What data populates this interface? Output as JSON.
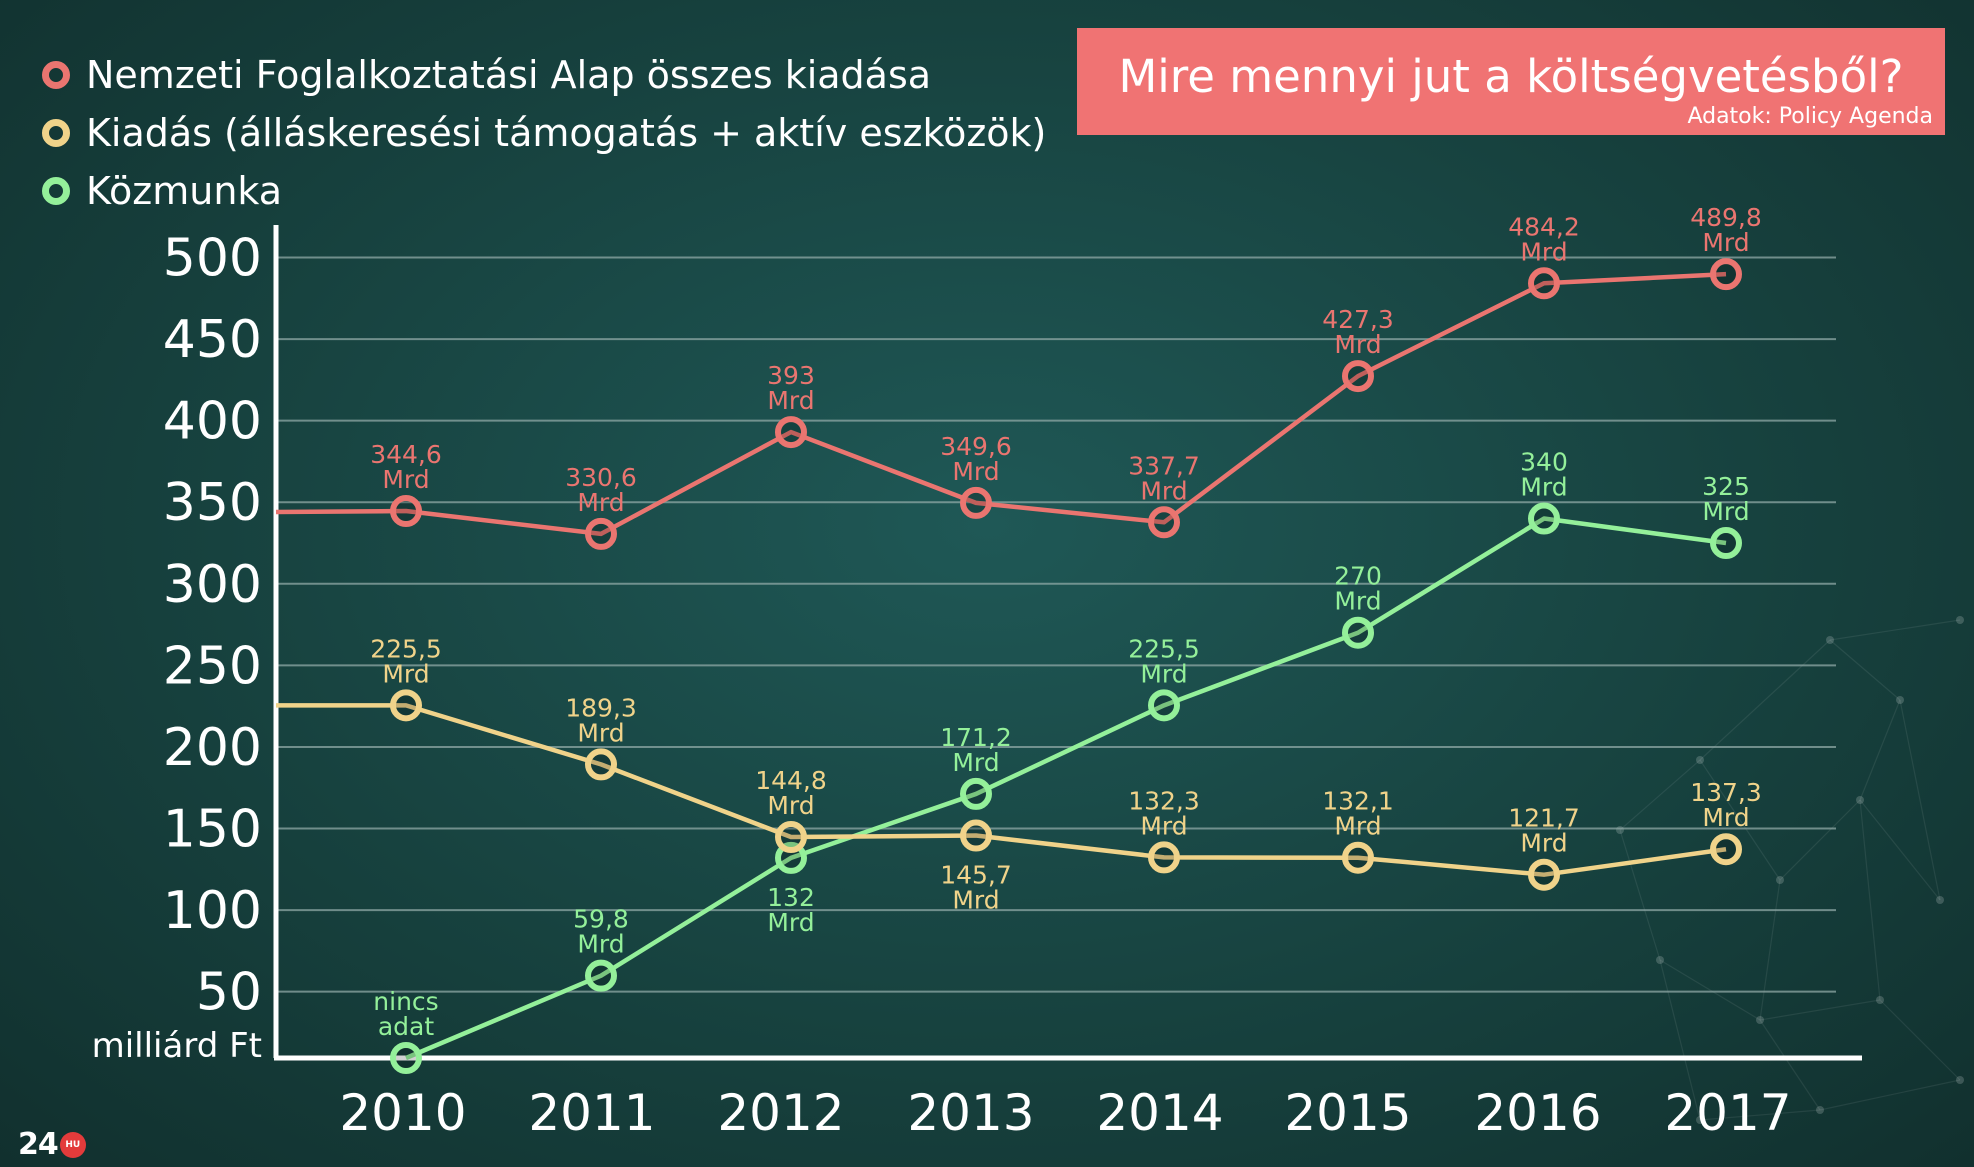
{
  "title": "Mire mennyi jut a költségvetésből?",
  "source": "Adatok: Policy Agenda",
  "logo": {
    "number": "24",
    "badge": "HU"
  },
  "colors": {
    "red": "#ea7570",
    "yellow": "#f0d38a",
    "green": "#94f09a",
    "grid": "#8fa8a6",
    "axis": "#ffffff"
  },
  "legend": [
    {
      "label": "Nemzeti Foglalkoztatási Alap összes kiadása",
      "color": "#ea7570"
    },
    {
      "label": "Kiadás (álláskeresési támogatás + aktív eszközök)",
      "color": "#f0d38a"
    },
    {
      "label": "Közmunka",
      "color": "#94f09a"
    }
  ],
  "chart_data": {
    "type": "line",
    "title": "Mire mennyi jut a költségvetésből?",
    "ylabel": "milliárd Ft",
    "xlabel": "",
    "ylim": [
      30,
      520
    ],
    "yticks": [
      50,
      100,
      150,
      200,
      250,
      300,
      350,
      400,
      450,
      500
    ],
    "x": [
      "2010",
      "2011",
      "2012",
      "2013",
      "2014",
      "2015",
      "2016",
      "2017"
    ],
    "grid": true,
    "series": [
      {
        "name": "Nemzeti Foglalkoztatási Alap összes kiadása",
        "color": "#ea7570",
        "values": [
          344.6,
          330.6,
          393,
          349.6,
          337.7,
          427.3,
          484.2,
          489.8
        ],
        "labels": [
          "344,6",
          "330,6",
          "393",
          "349,6",
          "337,7",
          "427,3",
          "484,2",
          "489,8"
        ],
        "label_unit": "Mrd",
        "start_value": 344
      },
      {
        "name": "Kiadás (álláskeresési támogatás + aktív eszközök)",
        "color": "#f0d38a",
        "values": [
          225.5,
          189.3,
          144.8,
          145.7,
          132.3,
          132.1,
          121.7,
          137.3
        ],
        "labels": [
          "225,5",
          "189,3",
          "144,8",
          "145,7",
          "132,3",
          "132,1",
          "121,7",
          "137,3"
        ],
        "label_unit": "Mrd",
        "start_value": 225.5
      },
      {
        "name": "Közmunka",
        "color": "#94f09a",
        "values": [
          null,
          59.8,
          132,
          171.2,
          225.5,
          270,
          340,
          325
        ],
        "labels": [
          "nincs",
          "59,8",
          "132",
          "171,2",
          "225,5",
          "270",
          "340",
          "325"
        ],
        "label_unit": "Mrd",
        "no_data_label": "adat"
      }
    ]
  }
}
